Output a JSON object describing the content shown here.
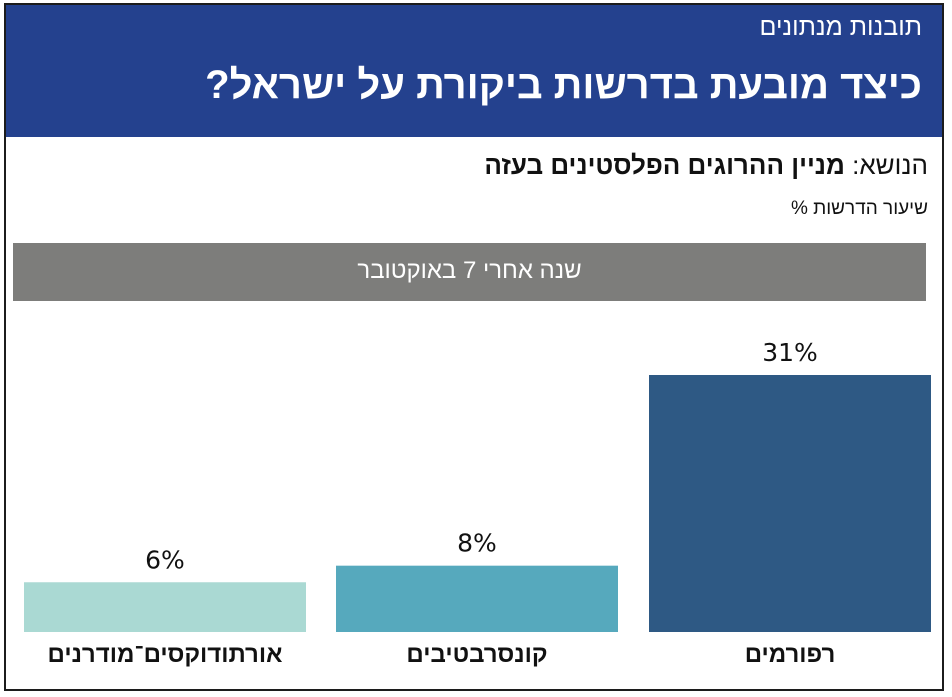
{
  "header": {
    "kicker": "תובנות מנתונים",
    "title": "כיצד מובעת בדרשות ביקורת על ישראל?"
  },
  "subject": {
    "prefix": "הנושא: ",
    "topic": "מניין ההרוגים הפלסטינים בעזה"
  },
  "unit_label": "שיעור הדרשות %",
  "panel_title": "שנה אחרי 7 באוקטובר",
  "colors": {
    "header_bg": "#24418e",
    "panel_bg": "#7d7d7b",
    "reform": "#2e5984",
    "conservative": "#56a9bd",
    "orthodox": "#aad9d3"
  },
  "chart_data": {
    "type": "bar",
    "title": "שנה אחרי 7 באוקטובר",
    "ylabel": "שיעור הדרשות %",
    "xlabel": "",
    "ylim": [
      0,
      31
    ],
    "categories": [
      "רפורמים",
      "קונסרבטיבים",
      "אורתודוקסים־מודרנים"
    ],
    "values": [
      31,
      8,
      6
    ],
    "value_labels": [
      "31%",
      "8%",
      "6%"
    ],
    "colors": [
      "#2e5984",
      "#56a9bd",
      "#aad9d3"
    ],
    "grid": false,
    "legend": "none"
  }
}
